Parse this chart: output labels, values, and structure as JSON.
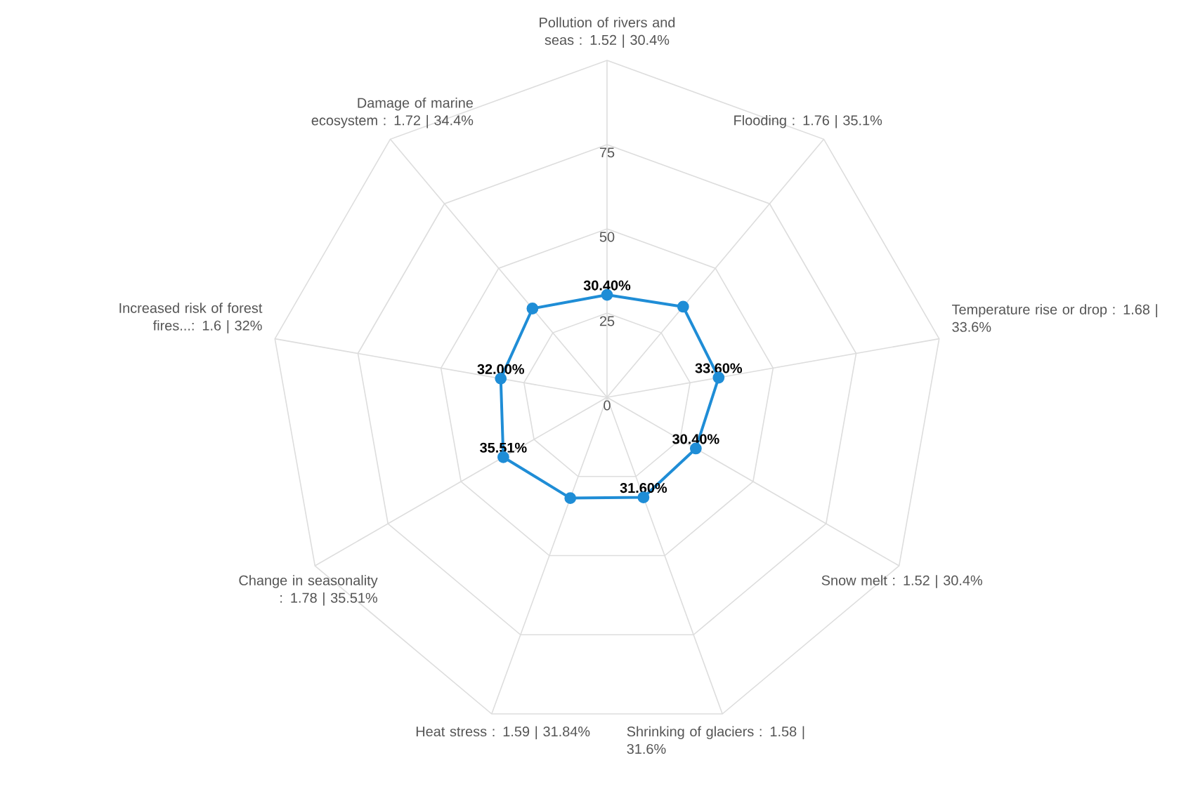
{
  "chart_data": {
    "type": "radar",
    "categories": [
      "Pollution of rivers and seas : 1.52 | 30.4%",
      "Flooding : 1.76 | 35.1%",
      "Temperature rise or drop : 1.68 | 33.6%",
      "Snow melt : 1.52 | 30.4%",
      "Shrinking of glaciers : 1.58 | 31.6%",
      "Heat stress : 1.59 | 31.84%",
      "Change in seasonality : 1.78 | 35.51%",
      "Increased risk of forest fires...: 1.6 | 32%",
      "Damage of marine ecosystem : 1.72 | 34.4%"
    ],
    "series": [
      {
        "color": "#1f8dd6",
        "values": [
          30.4,
          35.1,
          33.6,
          30.4,
          31.6,
          31.84,
          35.51,
          32,
          34.4
        ],
        "value_labels": [
          "30.40%",
          null,
          "33.60%",
          "30.40%",
          "31.60%",
          null,
          "35.51%",
          "32.00%",
          null
        ]
      }
    ],
    "ylim": [
      0,
      100
    ],
    "yticks": [
      0,
      25,
      50,
      75
    ],
    "grid": true,
    "marker": "circle"
  }
}
